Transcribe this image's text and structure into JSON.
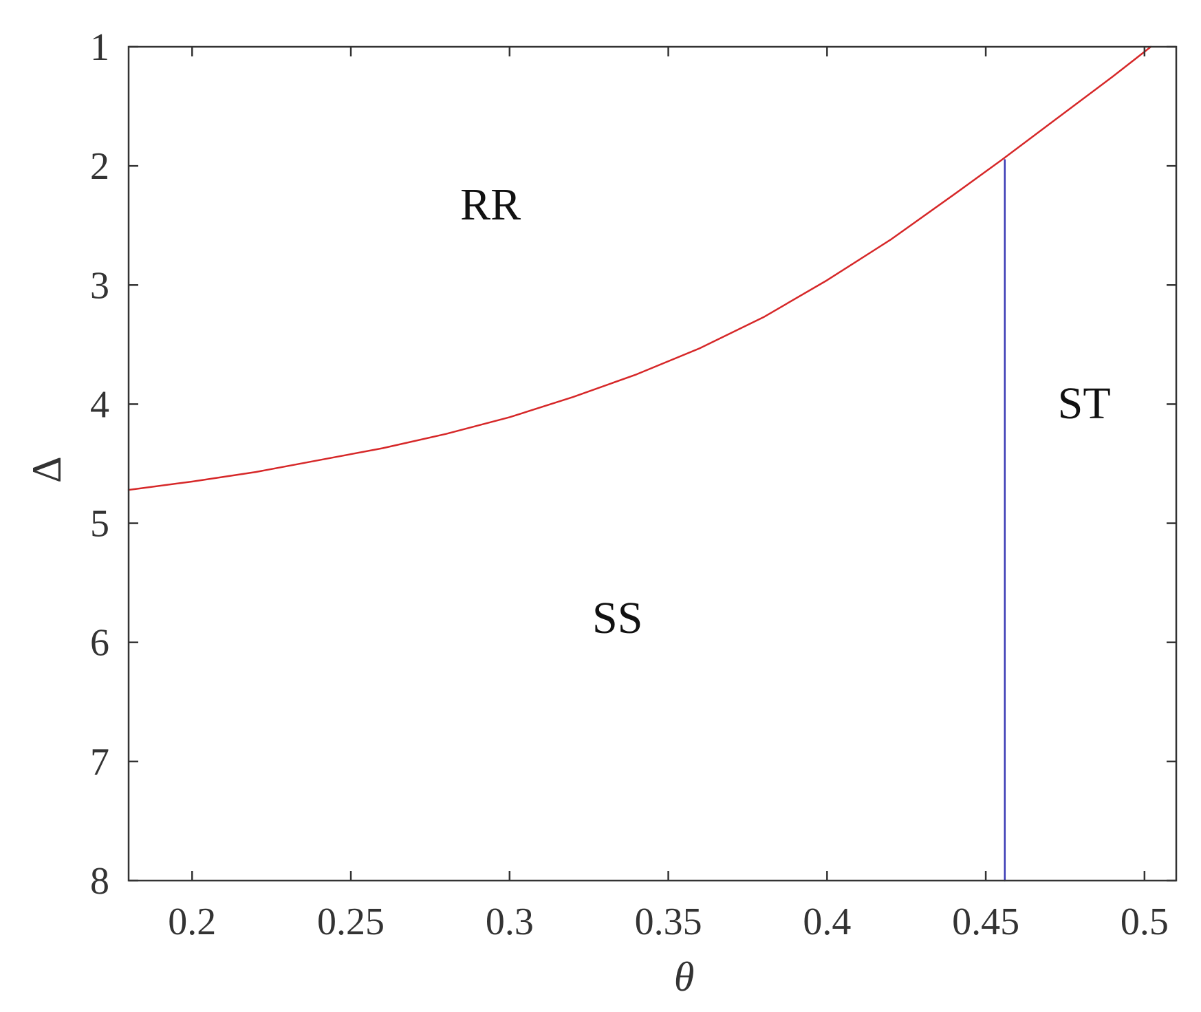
{
  "chart_data": {
    "type": "line",
    "title": "",
    "xlabel": "θ",
    "ylabel": "Δ",
    "xlim": [
      0.18,
      0.51
    ],
    "ylim": [
      1,
      8
    ],
    "y_reversed": true,
    "grid": false,
    "x_ticks": [
      {
        "value": 0.2,
        "label": "0.2"
      },
      {
        "value": 0.25,
        "label": "0.25"
      },
      {
        "value": 0.3,
        "label": "0.3"
      },
      {
        "value": 0.35,
        "label": "0.35"
      },
      {
        "value": 0.4,
        "label": "0.4"
      },
      {
        "value": 0.45,
        "label": "0.45"
      },
      {
        "value": 0.5,
        "label": "0.5"
      }
    ],
    "y_ticks": [
      {
        "value": 1,
        "label": "1"
      },
      {
        "value": 2,
        "label": "2"
      },
      {
        "value": 3,
        "label": "3"
      },
      {
        "value": 4,
        "label": "4"
      },
      {
        "value": 5,
        "label": "5"
      },
      {
        "value": 6,
        "label": "6"
      },
      {
        "value": 7,
        "label": "7"
      },
      {
        "value": 8,
        "label": "8"
      }
    ],
    "series": [
      {
        "color": "#d62728",
        "x": [
          0.18,
          0.2,
          0.22,
          0.24,
          0.26,
          0.28,
          0.3,
          0.32,
          0.34,
          0.36,
          0.38,
          0.4,
          0.42,
          0.44,
          0.455,
          0.47,
          0.49,
          0.502
        ],
        "y": [
          4.72,
          4.65,
          4.57,
          4.47,
          4.37,
          4.25,
          4.11,
          3.94,
          3.75,
          3.53,
          3.27,
          2.96,
          2.62,
          2.24,
          1.95,
          1.65,
          1.25,
          1.0
        ]
      },
      {
        "color": "#3b3bb5",
        "x": [
          0.456,
          0.456
        ],
        "y": [
          1.95,
          8.0
        ]
      }
    ],
    "annotations": [
      {
        "text": "RR",
        "x": 0.294,
        "y": 2.45
      },
      {
        "text": "SS",
        "x": 0.334,
        "y": 5.92
      },
      {
        "text": "ST",
        "x": 0.481,
        "y": 4.12
      }
    ]
  }
}
